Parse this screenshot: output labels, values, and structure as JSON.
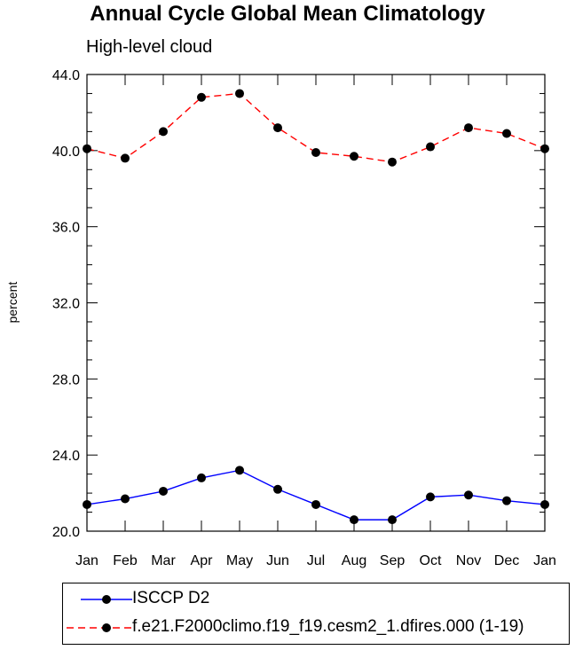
{
  "chart_data": {
    "type": "line",
    "title": "Annual Cycle Global Mean Climatology",
    "subtitle": "High-level cloud",
    "xlabel": "",
    "ylabel": "percent",
    "categories": [
      "Jan",
      "Feb",
      "Mar",
      "Apr",
      "May",
      "Jun",
      "Jul",
      "Aug",
      "Sep",
      "Oct",
      "Nov",
      "Dec",
      "Jan"
    ],
    "ylim": [
      20.0,
      44.0
    ],
    "yticks": [
      "20.0",
      "24.0",
      "28.0",
      "32.0",
      "36.0",
      "40.0",
      "44.0"
    ],
    "series": [
      {
        "name": "ISCCP D2",
        "color": "#0000ff",
        "dash": "solid",
        "values": [
          21.4,
          21.7,
          22.1,
          22.8,
          23.2,
          22.2,
          21.4,
          20.6,
          20.6,
          21.8,
          21.9,
          21.6,
          21.4
        ]
      },
      {
        "name": "f.e21.F2000climo.f19_f19.cesm2_1.dfires.000 (1-19)",
        "color": "#ff0000",
        "dash": "dashed",
        "values": [
          40.1,
          39.6,
          41.0,
          42.8,
          43.0,
          41.2,
          39.9,
          39.7,
          39.4,
          40.2,
          41.2,
          40.9,
          40.1
        ]
      }
    ]
  }
}
